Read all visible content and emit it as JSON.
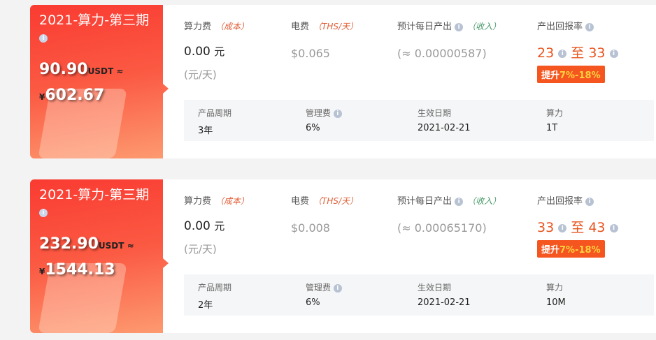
{
  "products": [
    {
      "title": "2021-算力-第三期",
      "price_usdt": "90.90",
      "usdt_label": "USDT ≈",
      "currency_symbol": "¥",
      "price_cny": "602.67",
      "hash_fee_label": "算力费",
      "hash_fee_note": "（成本）",
      "hash_fee_value": "0.00",
      "hash_fee_unit": "元",
      "hash_fee_per": "(元/天)",
      "elec_label": "电费",
      "elec_note": "（THS/天）",
      "elec_value": "$0.065",
      "output_label": "预计每日产出",
      "output_note": "（收入）",
      "output_value": "(≈ 0.00000587)",
      "return_label": "产出回报率",
      "return_from": "23",
      "return_sep": "至",
      "return_to": "33",
      "boost_label": "提升",
      "boost_value": "7%-18%",
      "period_label": "产品周期",
      "period_value": "3年",
      "mgmt_label": "管理费",
      "mgmt_value": "6%",
      "date_label": "生效日期",
      "date_value": "2021-02-21",
      "power_label": "算力",
      "power_value": "1T"
    },
    {
      "title": "2021-算力-第三期",
      "price_usdt": "232.90",
      "usdt_label": "USDT ≈",
      "currency_symbol": "¥",
      "price_cny": "1544.13",
      "hash_fee_label": "算力费",
      "hash_fee_note": "（成本）",
      "hash_fee_value": "0.00",
      "hash_fee_unit": "元",
      "hash_fee_per": "(元/天)",
      "elec_label": "电费",
      "elec_note": "（THS/天）",
      "elec_value": "$0.008",
      "output_label": "预计每日产出",
      "output_note": "（收入）",
      "output_value": "(≈ 0.00065170)",
      "return_label": "产出回报率",
      "return_from": "33",
      "return_sep": "至",
      "return_to": "43",
      "boost_label": "提升",
      "boost_value": "7%-18%",
      "period_label": "产品周期",
      "period_value": "2年",
      "mgmt_label": "管理费",
      "mgmt_value": "6%",
      "date_label": "生效日期",
      "date_value": "2021-02-21",
      "power_label": "算力",
      "power_value": "10M"
    }
  ],
  "colors": {
    "accent_red": "#fa3b32",
    "orange": "#e8541e",
    "note_green": "#4a9a6a",
    "badge_yellow": "#ffd23f"
  },
  "icons": [
    "info-icon"
  ]
}
